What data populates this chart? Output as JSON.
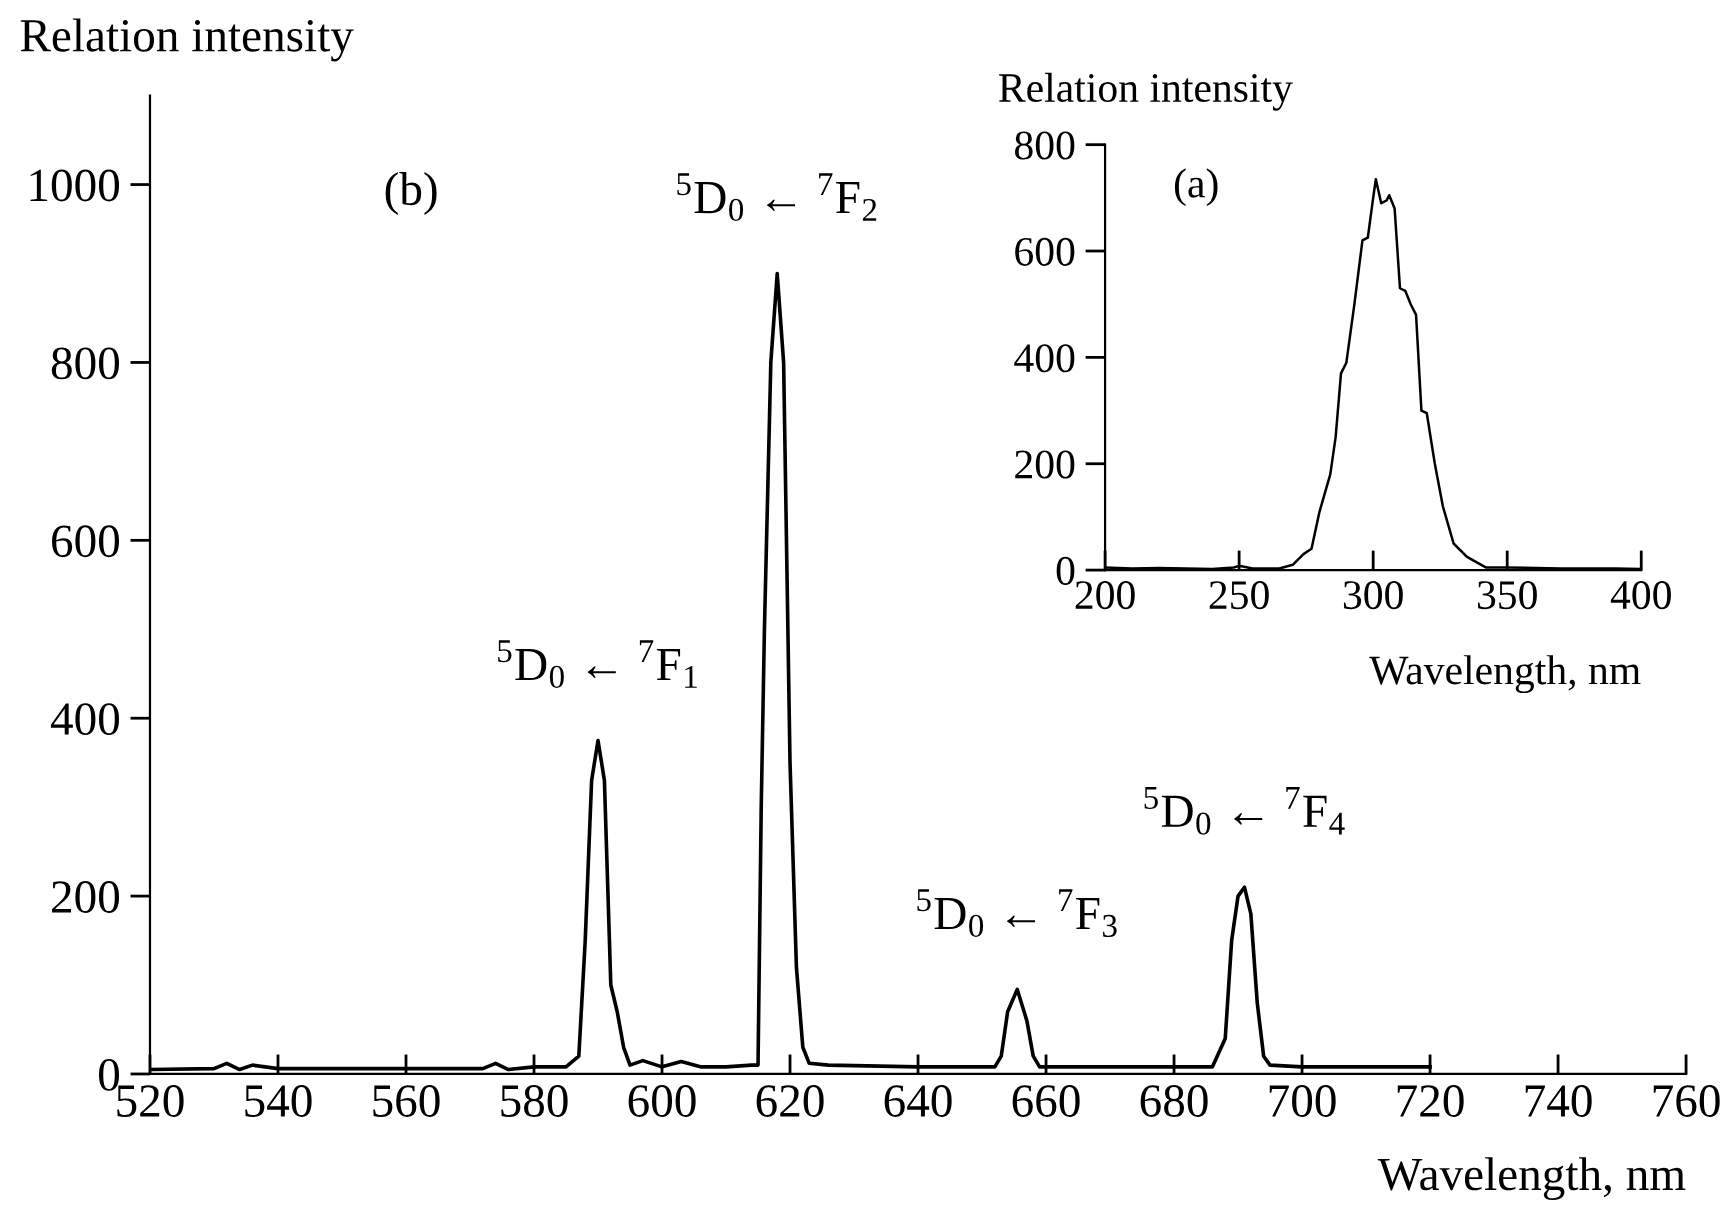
{
  "chart_data": [
    {
      "type": "line",
      "xlabel": "Wavelength, nm",
      "ylabel": "Relation intensity",
      "xlim": [
        520,
        760
      ],
      "xticks": [
        520,
        540,
        560,
        580,
        600,
        620,
        640,
        660,
        680,
        700,
        720,
        740,
        760
      ],
      "ylim": [
        0,
        1100
      ],
      "yticks": [
        0,
        200,
        400,
        600,
        800,
        1000
      ],
      "grid": false,
      "annotations": [
        "(b)",
        {
          "text": "$^{5}$D$_{0}$ ← $^{7}$F$_{1}$",
          "x": 590,
          "y": 375
        },
        {
          "text": "$^{5}$D$_{0}$ ← $^{7}$F$_{2}$",
          "x": 618,
          "y": 900
        },
        {
          "text": "$^{5}$D$_{0}$ ← $^{7}$F$_{3}$",
          "x": 655.5,
          "y": 95
        },
        {
          "text": "$^{5}$D$_{0}$ ← $^{7}$F$_{4}$",
          "x": 691,
          "y": 210
        }
      ],
      "series": [
        {
          "color": "#000000",
          "x": [
            520,
            530,
            532,
            534,
            536,
            540,
            560,
            572,
            574,
            576,
            580,
            585,
            587,
            588,
            589,
            590,
            591,
            592,
            593,
            594,
            595,
            597,
            600,
            603,
            606,
            610,
            614,
            615,
            615.5,
            616,
            617,
            618,
            619,
            620,
            621,
            622,
            623,
            626,
            640,
            652,
            653,
            654,
            655.5,
            657,
            658,
            659,
            670,
            686,
            688,
            689,
            690,
            691,
            692,
            693,
            694,
            695,
            700,
            720
          ],
          "values": [
            5,
            6,
            12,
            5,
            10,
            6,
            6,
            6,
            12,
            5,
            8,
            8,
            20,
            150,
            330,
            375,
            330,
            100,
            70,
            30,
            10,
            15,
            8,
            14,
            8,
            8,
            10,
            10,
            300,
            500,
            800,
            900,
            800,
            350,
            120,
            30,
            12,
            10,
            8,
            8,
            20,
            70,
            95,
            60,
            20,
            8,
            8,
            8,
            40,
            150,
            200,
            210,
            180,
            80,
            20,
            10,
            8,
            8
          ]
        }
      ]
    },
    {
      "type": "line",
      "xlabel": "Wavelength, nm",
      "ylabel": "Relation intensity",
      "xlim": [
        200,
        400
      ],
      "xticks": [
        200,
        250,
        300,
        350,
        400
      ],
      "ylim": [
        0,
        800
      ],
      "yticks": [
        0,
        200,
        400,
        600,
        800
      ],
      "grid": false,
      "annotations": [
        "(a)"
      ],
      "series": [
        {
          "color": "#000000",
          "x": [
            200,
            210,
            220,
            230,
            240,
            248,
            250,
            255,
            265,
            270,
            274,
            277,
            280,
            284,
            286,
            288,
            290,
            293,
            296,
            298,
            300,
            301,
            303,
            305,
            306,
            308,
            310,
            312,
            314,
            316,
            318,
            320,
            323,
            326,
            330,
            335,
            342,
            350,
            370,
            390,
            400
          ],
          "values": [
            5,
            3,
            4,
            3,
            2,
            5,
            8,
            3,
            3,
            10,
            30,
            40,
            110,
            180,
            250,
            370,
            390,
            500,
            620,
            625,
            700,
            735,
            690,
            695,
            705,
            680,
            530,
            525,
            500,
            480,
            300,
            295,
            200,
            120,
            50,
            25,
            5,
            5,
            3,
            3,
            2
          ]
        }
      ]
    }
  ]
}
